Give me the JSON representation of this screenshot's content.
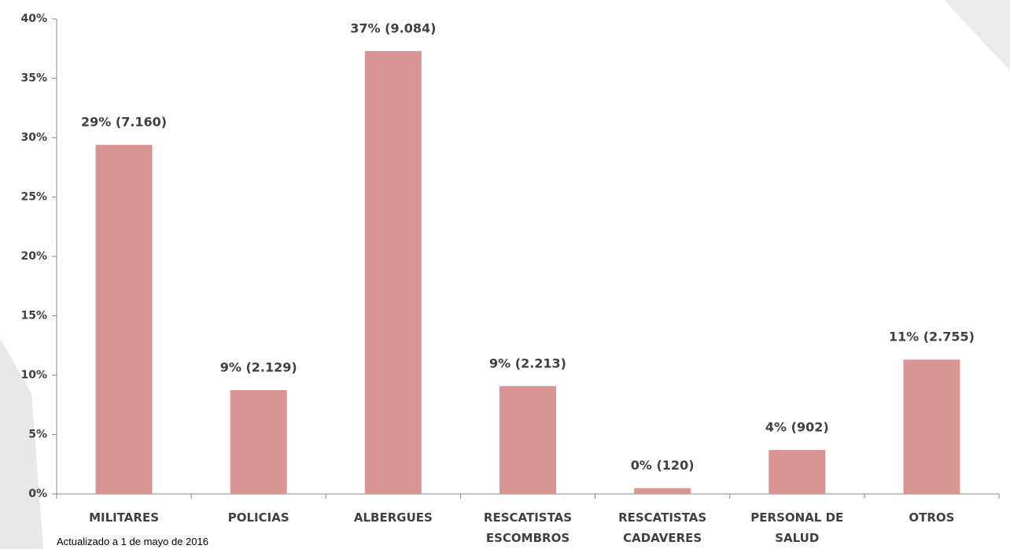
{
  "chart_data": {
    "type": "bar",
    "categories": [
      "MILITARES",
      "POLICIAS",
      "ALBERGUES",
      "RESCATISTAS ESCOMBROS",
      "RESCATISTAS CADAVERES",
      "PERSONAL DE SALUD",
      "OTROS"
    ],
    "values": [
      29.39,
      8.74,
      37.29,
      9.08,
      0.49,
      3.7,
      11.31
    ],
    "value_labels": [
      "29% (7.160)",
      "9% (2.129)",
      "37% (9.084)",
      "9% (2.213)",
      "0% (120)",
      "4% (902)",
      "11% (2.755)"
    ],
    "color": "#d99594",
    "ylim": [
      0,
      40
    ],
    "yticks": [
      {
        "value": 0,
        "label": "0%"
      },
      {
        "value": 5,
        "label": "5%"
      },
      {
        "value": 10,
        "label": "10%"
      },
      {
        "value": 15,
        "label": "15%"
      },
      {
        "value": 20,
        "label": "20%"
      },
      {
        "value": 25,
        "label": "25%"
      },
      {
        "value": 30,
        "label": "30%"
      },
      {
        "value": 35,
        "label": "35%"
      },
      {
        "value": 40,
        "label": "40%"
      }
    ],
    "grid": false,
    "note": "Actualizado a 1 de mayo de 2016"
  }
}
